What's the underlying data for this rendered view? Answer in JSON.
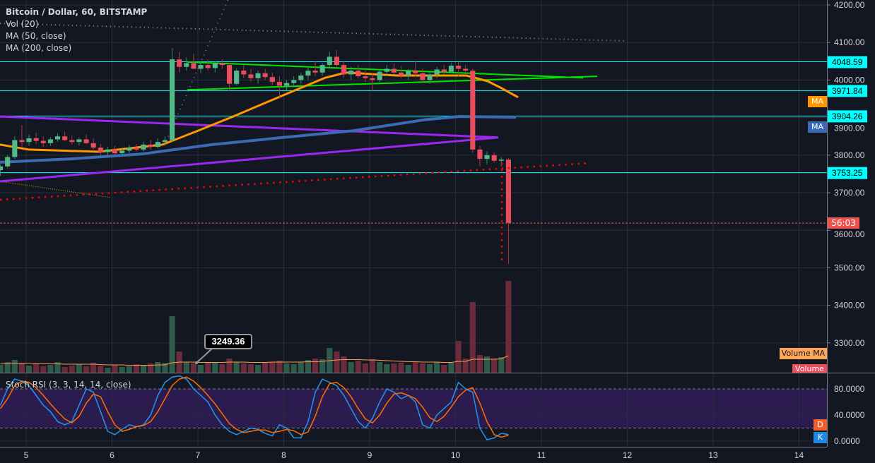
{
  "legend": {
    "symbol": "Bitcoin / Dollar, 60, BITSTAMP",
    "vol": "Vol (20)",
    "ma50": "MA (50, close)",
    "ma200": "MA (200, close)",
    "stoch": "Stoch RSI (3, 3, 14, 14, close)"
  },
  "tags": {
    "ma_orange": "MA",
    "ma_blue": "MA",
    "countdown": "56:03",
    "volume_ma": "Volume MA",
    "volume": "Volume",
    "d": "D",
    "k": "K"
  },
  "tooltip": "3249.36",
  "colors": {
    "background": "#131722",
    "grid": "#2a2e39",
    "up": "#53b987",
    "down": "#eb4d5c",
    "ma50": "#ff9800",
    "ma200": "#3c6bb4",
    "level": "#00ffff",
    "stoch_k": "#2196f3",
    "stoch_d": "#ff6d00",
    "stoch_band": "#2b1b4e"
  },
  "chart_data": {
    "type": "candlestick",
    "x_axis": {
      "unit": "day",
      "ticks": [
        "5",
        "6",
        "7",
        "8",
        "9",
        "10",
        "11",
        "12",
        "13",
        "14"
      ],
      "range": [
        4.695,
        14.3
      ]
    },
    "price_axis": {
      "ticks": [
        "4200.00",
        "4100.00",
        "4000.00",
        "3900.00",
        "3800.00",
        "3700.00",
        "3600.00",
        "3500.00",
        "3400.00",
        "3300.00"
      ],
      "range": [
        3200,
        4213
      ]
    },
    "grid": true,
    "bar_hours": 2,
    "first_bar_day": 4.7,
    "ohlc": [
      [
        3760,
        3775,
        3745,
        3770
      ],
      [
        3770,
        3800,
        3765,
        3795
      ],
      [
        3795,
        3850,
        3790,
        3840
      ],
      [
        3840,
        3880,
        3820,
        3835
      ],
      [
        3835,
        3855,
        3825,
        3845
      ],
      [
        3845,
        3860,
        3830,
        3838
      ],
      [
        3838,
        3850,
        3822,
        3832
      ],
      [
        3832,
        3848,
        3825,
        3842
      ],
      [
        3842,
        3858,
        3835,
        3850
      ],
      [
        3850,
        3862,
        3838,
        3840
      ],
      [
        3840,
        3852,
        3828,
        3835
      ],
      [
        3835,
        3848,
        3826,
        3842
      ],
      [
        3842,
        3855,
        3830,
        3832
      ],
      [
        3832,
        3845,
        3815,
        3820
      ],
      [
        3820,
        3830,
        3800,
        3808
      ],
      [
        3808,
        3822,
        3795,
        3815
      ],
      [
        3815,
        3825,
        3800,
        3805
      ],
      [
        3805,
        3820,
        3798,
        3812
      ],
      [
        3812,
        3828,
        3805,
        3820
      ],
      [
        3820,
        3830,
        3810,
        3815
      ],
      [
        3815,
        3835,
        3810,
        3828
      ],
      [
        3828,
        3840,
        3815,
        3822
      ],
      [
        3822,
        3845,
        3818,
        3835
      ],
      [
        3835,
        3850,
        3825,
        3840
      ],
      [
        3840,
        4085,
        3835,
        4055
      ],
      [
        4055,
        4075,
        4020,
        4035
      ],
      [
        4035,
        4060,
        4025,
        4045
      ],
      [
        4045,
        4070,
        4030,
        4030
      ],
      [
        4030,
        4050,
        4018,
        4040
      ],
      [
        4040,
        4055,
        4025,
        4032
      ],
      [
        4032,
        4050,
        4020,
        4045
      ],
      [
        4045,
        4055,
        4030,
        4040
      ],
      [
        4040,
        4045,
        3970,
        3990
      ],
      [
        3990,
        4030,
        3985,
        4025
      ],
      [
        4025,
        4040,
        4005,
        4015
      ],
      [
        4015,
        4030,
        3995,
        4005
      ],
      [
        4005,
        4025,
        3990,
        4018
      ],
      [
        4018,
        4030,
        4000,
        4008
      ],
      [
        4008,
        4020,
        3985,
        3995
      ],
      [
        3995,
        4010,
        3950,
        3985
      ],
      [
        3985,
        4000,
        3970,
        3992
      ],
      [
        3992,
        4010,
        3980,
        4000
      ],
      [
        4000,
        4020,
        3990,
        4012
      ],
      [
        4012,
        4035,
        4000,
        4025
      ],
      [
        4025,
        4050,
        4010,
        4020
      ],
      [
        4020,
        4045,
        4012,
        4040
      ],
      [
        4040,
        4075,
        4030,
        4062
      ],
      [
        4062,
        4080,
        4035,
        4040
      ],
      [
        4040,
        4050,
        4005,
        4015
      ],
      [
        4015,
        4035,
        4000,
        4025
      ],
      [
        4025,
        4040,
        4005,
        4010
      ],
      [
        4010,
        4025,
        3995,
        4005
      ],
      [
        4005,
        4020,
        3970,
        4000
      ],
      [
        4000,
        4030,
        3995,
        4022
      ],
      [
        4022,
        4040,
        4010,
        4030
      ],
      [
        4030,
        4045,
        4015,
        4020
      ],
      [
        4020,
        4038,
        4005,
        4012
      ],
      [
        4012,
        4030,
        4000,
        4025
      ],
      [
        4025,
        4050,
        4010,
        4018
      ],
      [
        4018,
        4030,
        3995,
        4000
      ],
      [
        4000,
        4020,
        3990,
        4015
      ],
      [
        4015,
        4035,
        4005,
        4028
      ],
      [
        4028,
        4040,
        4015,
        4022
      ],
      [
        4022,
        4045,
        4018,
        4038
      ],
      [
        4038,
        4048,
        4010,
        4030
      ],
      [
        4030,
        4040,
        4015,
        4025
      ],
      [
        4025,
        4030,
        3805,
        3815
      ],
      [
        3815,
        3825,
        3770,
        3790
      ],
      [
        3790,
        3810,
        3775,
        3800
      ],
      [
        3800,
        3808,
        3780,
        3785
      ],
      [
        3785,
        3795,
        3770,
        3788
      ],
      [
        3788,
        3792,
        3510,
        3620
      ]
    ],
    "volume": [
      22,
      30,
      36,
      28,
      20,
      26,
      18,
      22,
      30,
      16,
      20,
      24,
      18,
      28,
      20,
      14,
      22,
      16,
      18,
      24,
      20,
      26,
      30,
      28,
      160,
      60,
      30,
      26,
      22,
      30,
      28,
      24,
      40,
      30,
      26,
      24,
      22,
      28,
      30,
      34,
      26,
      24,
      30,
      36,
      40,
      38,
      70,
      60,
      46,
      30,
      34,
      26,
      38,
      30,
      24,
      26,
      28,
      22,
      30,
      26,
      24,
      30,
      22,
      28,
      90,
      40,
      200,
      50,
      46,
      40,
      44,
      260
    ],
    "volume_ma": [
      26,
      26,
      27,
      27,
      27,
      26,
      25,
      25,
      25,
      24,
      24,
      24,
      24,
      24,
      23,
      22,
      22,
      22,
      21,
      21,
      21,
      21,
      22,
      22,
      28,
      30,
      30,
      30,
      29,
      29,
      29,
      29,
      30,
      30,
      30,
      29,
      29,
      29,
      30,
      30,
      30,
      30,
      30,
      31,
      31,
      32,
      34,
      36,
      37,
      37,
      37,
      36,
      36,
      35,
      34,
      33,
      32,
      31,
      31,
      30,
      30,
      30,
      29,
      29,
      32,
      32,
      38,
      38,
      38,
      38,
      39,
      48
    ],
    "ma50": [
      [
        4.695,
        3828
      ],
      [
        5.025,
        3815
      ],
      [
        5.848,
        3809
      ],
      [
        6.588,
        3828
      ],
      [
        7.0,
        3865
      ],
      [
        7.412,
        3903
      ],
      [
        7.988,
        3959
      ],
      [
        8.481,
        4006
      ],
      [
        8.728,
        4020
      ],
      [
        9.305,
        4012
      ],
      [
        10.128,
        4012
      ],
      [
        10.374,
        3997
      ],
      [
        10.539,
        3978
      ],
      [
        10.728,
        3954
      ]
    ],
    "ma200": [
      [
        4.695,
        3781
      ],
      [
        5.519,
        3790
      ],
      [
        6.342,
        3803
      ],
      [
        7.165,
        3828
      ],
      [
        7.988,
        3847
      ],
      [
        8.811,
        3865
      ],
      [
        9.634,
        3894
      ],
      [
        10.045,
        3903
      ],
      [
        10.704,
        3901
      ]
    ],
    "levels": [
      "4048.59",
      "3971.84",
      "3904.26",
      "3753.25"
    ],
    "last_price": 3619,
    "drawings": {
      "purple_upper": [
        [
          4.695,
          3903
        ],
        [
          10.498,
          3847
        ]
      ],
      "purple_lower": [
        [
          4.695,
          3730
        ],
        [
          10.498,
          3847
        ]
      ],
      "green_upper": [
        [
          6.877,
          4048
        ],
        [
          11.486,
          4006
        ]
      ],
      "green_lower": [
        [
          6.877,
          3974
        ],
        [
          11.65,
          4010
        ]
      ],
      "red_dotted": [
        [
          4.695,
          3681
        ],
        [
          11.57,
          3779
        ]
      ],
      "red_vertical": [
        [
          10.54,
          3779
        ],
        [
          10.54,
          3514
        ]
      ],
      "gray_dotted": [
        [
          4.695,
          4151
        ],
        [
          12.0,
          4104
        ]
      ],
      "purple_dotted": [
        [
          6.63,
          3837
        ],
        [
          7.35,
          4213
        ]
      ],
      "yellow_dotted": [
        [
          4.695,
          3730
        ],
        [
          5.99,
          3687
        ]
      ]
    },
    "stoch_rsi": {
      "ticks": [
        "80.0000",
        "40.0000",
        "0.0000"
      ],
      "band": [
        20,
        80
      ],
      "k": [
        55,
        80,
        95,
        92,
        85,
        70,
        55,
        45,
        30,
        25,
        30,
        55,
        80,
        75,
        45,
        15,
        10,
        18,
        25,
        22,
        25,
        40,
        70,
        90,
        98,
        100,
        95,
        80,
        70,
        60,
        40,
        25,
        15,
        10,
        15,
        20,
        18,
        12,
        8,
        25,
        20,
        5,
        5,
        30,
        75,
        95,
        90,
        85,
        70,
        50,
        30,
        20,
        35,
        60,
        80,
        75,
        65,
        70,
        60,
        25,
        20,
        40,
        50,
        60,
        90,
        80,
        75,
        20,
        2,
        5,
        12,
        10
      ],
      "d": [
        50,
        65,
        85,
        92,
        90,
        82,
        70,
        57,
        45,
        34,
        28,
        38,
        58,
        72,
        68,
        45,
        25,
        15,
        18,
        22,
        24,
        30,
        45,
        65,
        85,
        95,
        98,
        92,
        82,
        70,
        57,
        42,
        27,
        18,
        13,
        15,
        17,
        17,
        13,
        15,
        18,
        16,
        10,
        14,
        38,
        68,
        88,
        90,
        82,
        68,
        50,
        34,
        28,
        40,
        58,
        72,
        74,
        70,
        65,
        52,
        36,
        30,
        38,
        52,
        68,
        78,
        82,
        58,
        30,
        10,
        6,
        9
      ]
    }
  }
}
